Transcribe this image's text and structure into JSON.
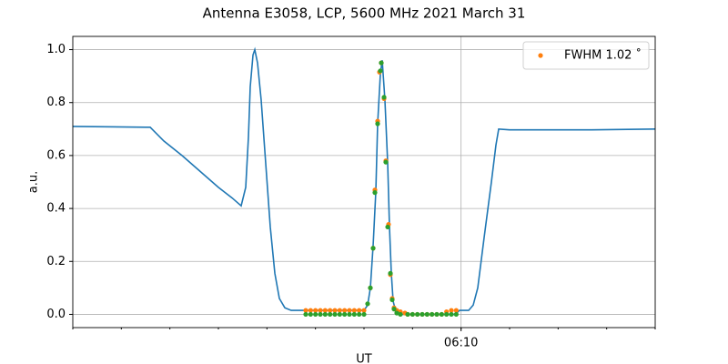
{
  "chart_data": {
    "type": "line",
    "title": "Antenna E3058, LCP, 5600 MHz 2021 March 31",
    "xlabel": "UT",
    "ylabel": "a.u.",
    "xlim": [
      2,
      14
    ],
    "xticks": [
      {
        "value": 10,
        "label": "06:10"
      }
    ],
    "xminorticks": [
      2,
      3,
      4,
      5,
      6,
      7,
      8,
      9,
      10,
      11,
      12,
      13,
      14
    ],
    "ylim": [
      -0.05,
      1.05
    ],
    "yticks": [
      {
        "value": 0,
        "label": "0.0"
      },
      0.2,
      0.4,
      0.6,
      0.8,
      {
        "value": 1,
        "label": "1.0"
      }
    ],
    "grid": true,
    "legend": "upper right",
    "series": [
      {
        "color": "#1f77b4",
        "kind": "line",
        "x": [
          2.0,
          3.5,
          3.594,
          3.875,
          4.25,
          4.625,
          5.0,
          5.281,
          5.469,
          5.563,
          5.619,
          5.656,
          5.713,
          5.75,
          5.806,
          5.881,
          5.975,
          6.069,
          6.163,
          6.256,
          6.369,
          6.5,
          6.781,
          8.0,
          8.075,
          8.131,
          8.188,
          8.244,
          8.281,
          8.338,
          8.375,
          8.431,
          8.488,
          8.525,
          8.563,
          8.6,
          8.656,
          8.75,
          9.875,
          9.969,
          10.156,
          10.25,
          10.344,
          10.475,
          10.625,
          10.719,
          10.775,
          11.0,
          11.75,
          12.688,
          14.0
        ],
        "values": [
          0.71,
          0.707,
          0.707,
          0.655,
          0.6,
          0.54,
          0.48,
          0.44,
          0.41,
          0.48,
          0.67,
          0.86,
          0.98,
          1.0,
          0.95,
          0.81,
          0.57,
          0.33,
          0.155,
          0.06,
          0.025,
          0.015,
          0.015,
          0.015,
          0.035,
          0.1,
          0.26,
          0.465,
          0.72,
          0.91,
          0.96,
          0.81,
          0.57,
          0.33,
          0.155,
          0.05,
          0.01,
          0,
          0,
          0.015,
          0.015,
          0.035,
          0.1,
          0.29,
          0.5,
          0.64,
          0.7,
          0.697,
          0.697,
          0.697,
          0.7
        ]
      },
      {
        "name": "FWHM 1.02 ˚",
        "color": "#ff7f0e",
        "kind": "scatter",
        "x": [
          6.8,
          6.9,
          7.0,
          7.1,
          7.2,
          7.3,
          7.4,
          7.5,
          7.6,
          7.7,
          7.8,
          7.9,
          8.0,
          8.131,
          8.188,
          8.225,
          8.281,
          8.319,
          8.356,
          8.413,
          8.45,
          8.506,
          8.544,
          8.581,
          8.619,
          8.675,
          8.75,
          8.844,
          8.9,
          9.0,
          9.1,
          9.2,
          9.3,
          9.4,
          9.5,
          9.6,
          9.7,
          9.8,
          9.9
        ],
        "values": [
          0.015,
          0.015,
          0.015,
          0.015,
          0.015,
          0.015,
          0.015,
          0.015,
          0.015,
          0.015,
          0.015,
          0.015,
          0.015,
          0.1,
          0.25,
          0.47,
          0.73,
          0.915,
          0.95,
          0.815,
          0.58,
          0.34,
          0.15,
          0.06,
          0.025,
          0.015,
          0.01,
          0.005,
          0,
          0,
          0,
          0,
          0,
          0,
          0,
          0,
          0.01,
          0.015,
          0.015
        ]
      },
      {
        "color": "#2ca02c",
        "kind": "scatter",
        "x": [
          6.8,
          6.9,
          7.0,
          7.1,
          7.2,
          7.3,
          7.4,
          7.5,
          7.6,
          7.7,
          7.8,
          7.9,
          8.0,
          8.075,
          8.131,
          8.188,
          8.225,
          8.281,
          8.338,
          8.356,
          8.413,
          8.45,
          8.488,
          8.544,
          8.581,
          8.619,
          8.675,
          8.75,
          8.9,
          9.0,
          9.1,
          9.2,
          9.3,
          9.4,
          9.5,
          9.6,
          9.7,
          9.8,
          9.9
        ],
        "values": [
          0,
          0,
          0,
          0,
          0,
          0,
          0,
          0,
          0,
          0,
          0,
          0,
          0,
          0.04,
          0.1,
          0.25,
          0.46,
          0.72,
          0.92,
          0.95,
          0.82,
          0.575,
          0.33,
          0.155,
          0.055,
          0.02,
          0.005,
          0,
          0,
          0,
          0,
          0,
          0,
          0,
          0,
          0,
          0,
          0,
          0
        ]
      }
    ]
  }
}
